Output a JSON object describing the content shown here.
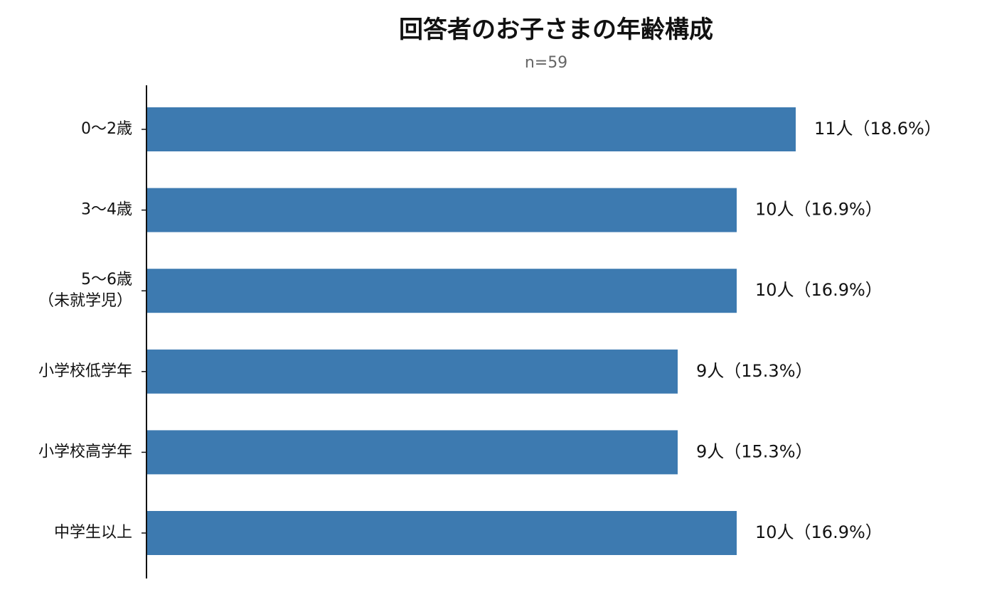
{
  "chart_data": {
    "type": "bar",
    "orientation": "horizontal",
    "title": "回答者のお子さまの年齢構成",
    "subtitle": "n=59",
    "categories": [
      [
        "0〜2歳"
      ],
      [
        "3〜4歳"
      ],
      [
        "5〜6歳",
        "（未就学児）"
      ],
      [
        "小学校低学年"
      ],
      [
        "小学校高学年"
      ],
      [
        "中学生以上"
      ]
    ],
    "values": [
      11,
      10,
      10,
      9,
      9,
      10
    ],
    "data_labels": [
      "11人（18.6%）",
      "10人（16.9%）",
      "10人（16.9%）",
      "9人（15.3%）",
      "9人（15.3%）",
      "10人（16.9%）"
    ],
    "xlim": [
      0,
      12.5
    ],
    "grid": false,
    "legend": "none",
    "bar_color": "#3d7ab0"
  }
}
